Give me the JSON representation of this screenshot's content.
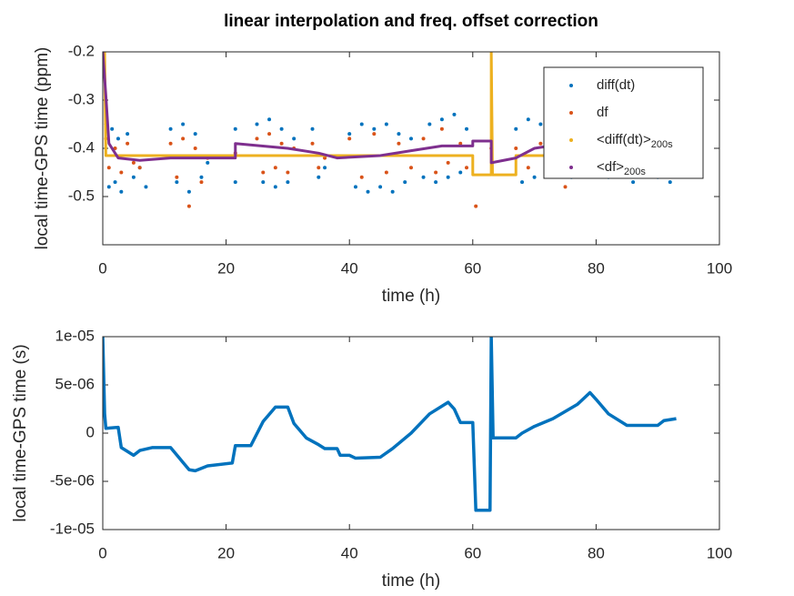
{
  "chart_data": [
    {
      "type": "scatter",
      "title": "linear interpolation and freq. offset correction",
      "xlabel": "time (h)",
      "ylabel": "local time-GPS time (ppm)",
      "xlim": [
        0,
        100
      ],
      "xticks": [
        0,
        20,
        40,
        60,
        80,
        100
      ],
      "ylim": [
        -0.6,
        -0.2
      ],
      "yticks": [
        -0.5,
        -0.4,
        -0.3,
        -0.2
      ],
      "legend": "northeast",
      "series": [
        {
          "name": "diff(dt)",
          "color": "#0072bd",
          "style": "markers",
          "x": [
            0.5,
            1,
            1.5,
            2,
            2.5,
            3,
            4,
            5,
            6,
            7,
            11,
            12,
            13,
            14,
            15,
            16,
            17,
            21.5,
            21.5,
            25,
            26,
            27,
            28,
            29,
            30,
            31,
            34,
            35,
            36,
            40,
            41,
            42,
            43,
            44,
            45,
            46,
            47,
            48,
            49,
            50,
            52,
            53,
            54,
            55,
            56,
            57,
            58,
            59,
            67,
            68,
            69,
            70,
            71,
            72,
            73,
            74,
            75,
            76,
            77,
            80,
            82,
            84,
            86,
            88,
            90,
            92
          ],
          "values": [
            -0.35,
            -0.48,
            -0.36,
            -0.47,
            -0.38,
            -0.49,
            -0.37,
            -0.46,
            -0.44,
            -0.48,
            -0.36,
            -0.47,
            -0.35,
            -0.49,
            -0.37,
            -0.46,
            -0.43,
            -0.36,
            -0.47,
            -0.35,
            -0.47,
            -0.34,
            -0.48,
            -0.36,
            -0.47,
            -0.38,
            -0.36,
            -0.46,
            -0.44,
            -0.37,
            -0.48,
            -0.35,
            -0.49,
            -0.36,
            -0.48,
            -0.35,
            -0.49,
            -0.37,
            -0.47,
            -0.38,
            -0.46,
            -0.35,
            -0.47,
            -0.34,
            -0.46,
            -0.33,
            -0.45,
            -0.36,
            -0.36,
            -0.47,
            -0.34,
            -0.46,
            -0.35,
            -0.45,
            -0.37,
            -0.44,
            -0.38,
            -0.46,
            -0.43,
            -0.42,
            -0.46,
            -0.44,
            -0.47,
            -0.44,
            -0.46,
            -0.47
          ]
        },
        {
          "name": "df",
          "color": "#d95319",
          "style": "markers",
          "x": [
            0.5,
            1,
            2,
            3,
            4,
            5,
            6,
            11,
            12,
            13,
            14,
            15,
            16,
            17,
            21.5,
            25,
            26,
            27,
            28,
            29,
            30,
            31,
            34,
            35,
            36,
            40,
            42,
            44,
            46,
            48,
            50,
            52,
            54,
            55,
            56,
            58,
            59,
            60.5,
            63,
            67,
            69,
            71,
            73,
            75
          ],
          "values": [
            -0.38,
            -0.44,
            -0.4,
            -0.45,
            -0.39,
            -0.43,
            -0.44,
            -0.39,
            -0.46,
            -0.38,
            -0.52,
            -0.4,
            -0.47,
            -0.42,
            -0.41,
            -0.38,
            -0.45,
            -0.37,
            -0.44,
            -0.39,
            -0.45,
            -0.4,
            -0.39,
            -0.44,
            -0.42,
            -0.38,
            -0.46,
            -0.37,
            -0.45,
            -0.39,
            -0.44,
            -0.38,
            -0.45,
            -0.36,
            -0.43,
            -0.39,
            -0.44,
            -0.52,
            -0.4,
            -0.4,
            -0.44,
            -0.39,
            -0.45,
            -0.48
          ]
        },
        {
          "name": "<diff(dt)>",
          "subscript": "200s",
          "color": "#edb120",
          "style": "line",
          "x": [
            0,
            0.3,
            0.5,
            60,
            60,
            63,
            63,
            63.2,
            67,
            67,
            93
          ],
          "values": [
            -0.2,
            -0.2,
            -0.415,
            -0.415,
            -0.455,
            -0.455,
            -0.2,
            -0.455,
            -0.455,
            -0.415,
            -0.415
          ]
        },
        {
          "name": "<df>",
          "subscript": "200s",
          "color": "#7e2f8e",
          "style": "line",
          "x": [
            0,
            0.5,
            1,
            2.5,
            6,
            11,
            17,
            21.5,
            21.5,
            30,
            35,
            38,
            45,
            50,
            55,
            60,
            60,
            63,
            63,
            67,
            70,
            75
          ],
          "values": [
            -0.2,
            -0.29,
            -0.39,
            -0.42,
            -0.425,
            -0.42,
            -0.42,
            -0.42,
            -0.39,
            -0.4,
            -0.41,
            -0.42,
            -0.415,
            -0.405,
            -0.395,
            -0.395,
            -0.385,
            -0.385,
            -0.43,
            -0.42,
            -0.4,
            -0.39
          ]
        }
      ]
    },
    {
      "type": "line",
      "xlabel": "time (h)",
      "ylabel": "local time-GPS time (s)",
      "xlim": [
        0,
        100
      ],
      "xticks": [
        0,
        20,
        40,
        60,
        80,
        100
      ],
      "ylim": [
        -1e-05,
        1e-05
      ],
      "yticks": [
        {
          "value": -1e-05,
          "label": "-1e-05"
        },
        {
          "value": -5e-06,
          "label": "-5e-06"
        },
        0,
        {
          "value": 5e-06,
          "label": "5e-06"
        },
        {
          "value": 1e-05,
          "label": "1e-05"
        }
      ],
      "series": [
        {
          "color": "#0072bd",
          "style": "line",
          "x": [
            0,
            0.3,
            0.5,
            2.5,
            3,
            5,
            6,
            8,
            11,
            14,
            15,
            17,
            21,
            21.5,
            24,
            26,
            28,
            30,
            31,
            33,
            35,
            36,
            38,
            38.5,
            40,
            41,
            45,
            47,
            50,
            53,
            56,
            57,
            58,
            60,
            60.5,
            62.8,
            63,
            63.3,
            67,
            68,
            70,
            73,
            77,
            79,
            80,
            82,
            85,
            90,
            91,
            93
          ],
          "values": [
            1e-05,
            2e-06,
            5e-07,
            6e-07,
            -1.5e-06,
            -2.3e-06,
            -1.8e-06,
            -1.5e-06,
            -1.5e-06,
            -3.8e-06,
            -3.9e-06,
            -3.4e-06,
            -3.1e-06,
            -1.3e-06,
            -1.3e-06,
            1.2e-06,
            2.7e-06,
            2.7e-06,
            1e-06,
            -5e-07,
            -1.2e-06,
            -1.6e-06,
            -1.6e-06,
            -2.3e-06,
            -2.3e-06,
            -2.6e-06,
            -2.5e-06,
            -1.6e-06,
            0,
            2e-06,
            3.2e-06,
            2.5e-06,
            1.1e-06,
            1.1e-06,
            -8e-06,
            -8e-06,
            1e-05,
            -5e-07,
            -5e-07,
            0,
            7e-07,
            1.5e-06,
            3e-06,
            4.2e-06,
            3.5e-06,
            2e-06,
            8e-07,
            8e-07,
            1.3e-06,
            1.5e-06
          ]
        }
      ]
    }
  ]
}
